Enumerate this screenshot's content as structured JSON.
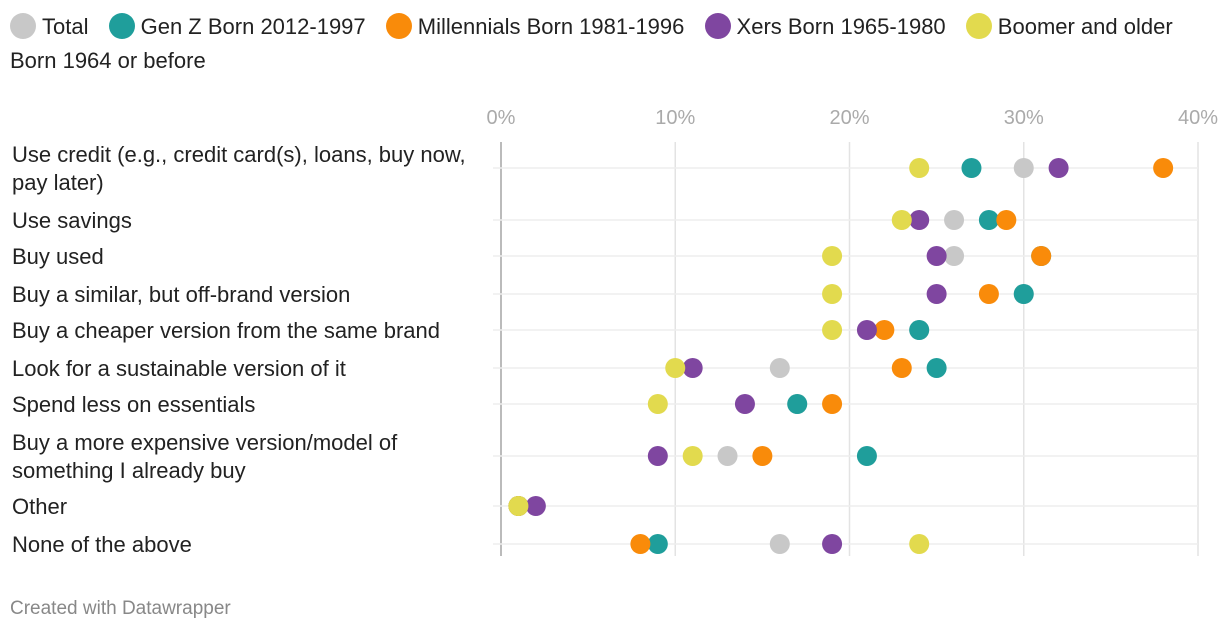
{
  "chart_data": {
    "type": "scatter",
    "title": "",
    "xlabel": "",
    "ylabel": "",
    "xlim": [
      0,
      40
    ],
    "x_ticks": [
      0,
      10,
      20,
      30,
      40
    ],
    "x_tick_labels": [
      "0%",
      "10%",
      "20%",
      "30%",
      "40%"
    ],
    "grid": true,
    "legend_position": "top",
    "categories": [
      "Use credit (e.g., credit card(s), loans, buy now, pay later)",
      "Use savings",
      "Buy used",
      "Buy a similar, but off-brand version",
      "Buy a cheaper version from the same brand",
      "Look for a sustainable version of it",
      "Spend less on essentials",
      "Buy a more expensive version/model of something I already buy",
      "Other",
      "None of the above"
    ],
    "series": [
      {
        "name": "Total",
        "color": "#c8c8c8",
        "values": [
          30,
          26,
          26,
          30,
          24,
          16,
          17,
          13,
          1,
          16
        ]
      },
      {
        "name": "Gen Z Born 2012-1997",
        "color": "#1f9e9b",
        "values": [
          27,
          28,
          31,
          30,
          24,
          25,
          17,
          21,
          1,
          9
        ]
      },
      {
        "name": "Millennials Born 1981-1996",
        "color": "#f98b0a",
        "values": [
          38,
          29,
          31,
          28,
          22,
          23,
          19,
          15,
          1,
          8
        ]
      },
      {
        "name": "Xers Born 1965-1980",
        "color": "#7f46a0",
        "values": [
          32,
          24,
          25,
          25,
          21,
          11,
          14,
          9,
          2,
          19
        ]
      },
      {
        "name": "Boomer and older Born 1964 or before",
        "color": "#e2da4e",
        "values": [
          24,
          23,
          19,
          19,
          19,
          10,
          9,
          11,
          1,
          24
        ]
      }
    ]
  },
  "footer": "Created with Datawrapper"
}
